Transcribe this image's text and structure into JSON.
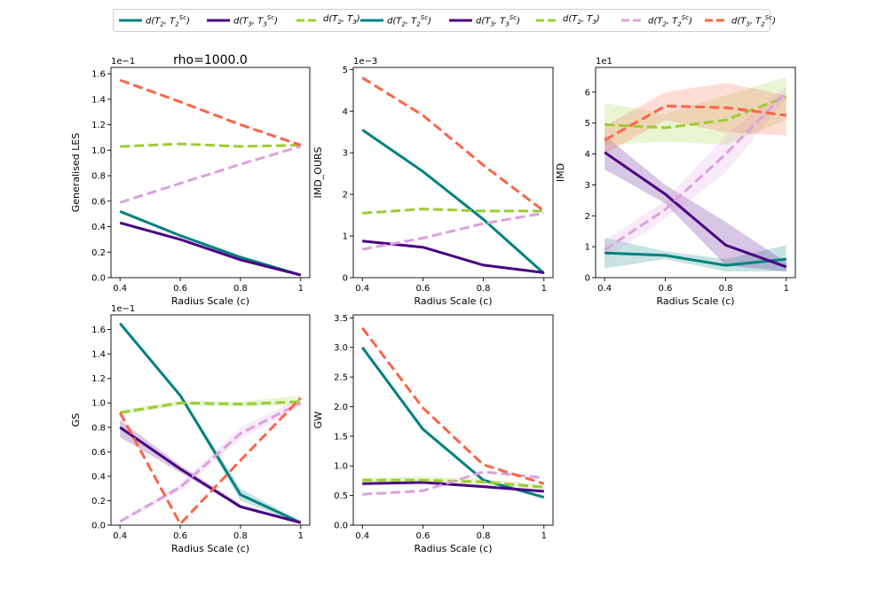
{
  "figure": {
    "suptitle": "rho=1000.0"
  },
  "legend": [
    {
      "label_html": "d(T<sub>2</sub>, T<sub>2</sub><sup>Sc</sup>)",
      "color": "#008080",
      "dash": "solid"
    },
    {
      "label_html": "d(T<sub>3</sub>, T<sub>3</sub><sup>Sc</sup>)",
      "color": "#4b0082",
      "dash": "solid"
    },
    {
      "label_html": "d(T<sub>2</sub>, T<sub>3</sub>)",
      "color": "#9acd32",
      "dash": "dashed"
    },
    {
      "label_html": "d(T<sub>2</sub>, T<sub>2</sub><sup>Sc</sup>)",
      "color": "#008080",
      "dash": "solid"
    },
    {
      "label_html": "d(T<sub>3</sub>, T<sub>3</sub><sup>Sc</sup>)",
      "color": "#4b0082",
      "dash": "solid"
    },
    {
      "label_html": "d(T<sub>2</sub>, T<sub>3</sub>)",
      "color": "#9acd32",
      "dash": "dashed"
    },
    {
      "label_html": "d(T<sub>2</sub>, T<sub>2</sub><sup>Sc</sup>)",
      "color": "#dda0dd",
      "dash": "dashed"
    },
    {
      "label_html": "d(T<sub>3</sub>, T<sub>2</sub><sup>Sc</sup>)",
      "color": "#ff6347",
      "dash": "dashed"
    }
  ],
  "chart_data": [
    {
      "type": "line",
      "title": "",
      "xlabel": "Radius Scale (c)",
      "ylabel": "Generalised LES",
      "scale_label": "1e−1",
      "x": [
        0.4,
        0.6,
        0.8,
        1.0
      ],
      "xticks": [
        "0.4",
        "0.6",
        "0.8",
        "1"
      ],
      "ylim": [
        0,
        1.65
      ],
      "yticks": [
        "0.0",
        "0.2",
        "0.4",
        "0.6",
        "0.8",
        "1.0",
        "1.2",
        "1.4",
        "1.6"
      ],
      "series": [
        {
          "name": "d(T2, T2Sc)",
          "color": "#008080",
          "dash": "solid",
          "values": [
            0.52,
            0.33,
            0.16,
            0.02
          ]
        },
        {
          "name": "d(T3, T3Sc)",
          "color": "#4b0082",
          "dash": "solid",
          "values": [
            0.43,
            0.3,
            0.14,
            0.02
          ]
        },
        {
          "name": "d(T2, T3)",
          "color": "#9acd32",
          "dash": "dashed",
          "values": [
            1.03,
            1.05,
            1.03,
            1.04
          ]
        },
        {
          "name": "d(T2, T2Sc)",
          "color": "#dda0dd",
          "dash": "dashed",
          "values": [
            0.59,
            0.74,
            0.89,
            1.03
          ]
        },
        {
          "name": "d(T3, T2Sc)",
          "color": "#ff6347",
          "dash": "dashed",
          "values": [
            1.55,
            1.38,
            1.2,
            1.04
          ]
        }
      ]
    },
    {
      "type": "line",
      "title": "",
      "xlabel": "Radius Scale (c)",
      "ylabel": "IMD_OURS",
      "scale_label": "1e−3",
      "x": [
        0.4,
        0.6,
        0.8,
        1.0
      ],
      "xticks": [
        "0.4",
        "0.6",
        "0.8",
        "1"
      ],
      "ylim": [
        0,
        5.05
      ],
      "yticks": [
        "0",
        "1",
        "2",
        "3",
        "4",
        "5"
      ],
      "series": [
        {
          "name": "d(T2, T2Sc)",
          "color": "#008080",
          "dash": "solid",
          "values": [
            3.55,
            2.55,
            1.4,
            0.1
          ]
        },
        {
          "name": "d(T3, T3Sc)",
          "color": "#4b0082",
          "dash": "solid",
          "values": [
            0.88,
            0.73,
            0.3,
            0.12
          ]
        },
        {
          "name": "d(T2, T3)",
          "color": "#9acd32",
          "dash": "dashed",
          "values": [
            1.55,
            1.65,
            1.6,
            1.6
          ]
        },
        {
          "name": "d(T2, T2Sc)",
          "color": "#dda0dd",
          "dash": "dashed",
          "values": [
            0.68,
            0.95,
            1.3,
            1.55
          ]
        },
        {
          "name": "d(T3, T2Sc)",
          "color": "#ff6347",
          "dash": "dashed",
          "values": [
            4.8,
            3.9,
            2.7,
            1.6
          ]
        }
      ]
    },
    {
      "type": "line",
      "title": "",
      "xlabel": "Radius Scale (c)",
      "ylabel": "IMD",
      "scale_label": "1e1",
      "x": [
        0.4,
        0.6,
        0.8,
        1.0
      ],
      "xticks": [
        "0.4",
        "0.6",
        "0.8",
        "1"
      ],
      "ylim": [
        0,
        6.8
      ],
      "yticks": [
        "0",
        "1",
        "2",
        "3",
        "4",
        "5",
        "6"
      ],
      "series": [
        {
          "name": "d(T2, T2Sc)",
          "color": "#008080",
          "dash": "solid",
          "values": [
            0.8,
            0.72,
            0.4,
            0.6
          ],
          "band_lo": [
            0.3,
            0.6,
            0.2,
            0.2
          ],
          "band_hi": [
            1.3,
            0.85,
            0.6,
            1.05
          ]
        },
        {
          "name": "d(T3, T3Sc)",
          "color": "#4b0082",
          "dash": "solid",
          "values": [
            4.05,
            2.7,
            1.05,
            0.35
          ],
          "band_lo": [
            3.5,
            2.4,
            0.4,
            0.2
          ],
          "band_hi": [
            4.6,
            3.0,
            1.8,
            0.5
          ]
        },
        {
          "name": "d(T2, T3)",
          "color": "#9acd32",
          "dash": "dashed",
          "values": [
            4.95,
            4.85,
            5.1,
            5.85
          ],
          "band_lo": [
            4.3,
            4.4,
            4.3,
            5.1
          ],
          "band_hi": [
            5.65,
            5.3,
            5.9,
            6.5
          ]
        },
        {
          "name": "d(T2, T2Sc)",
          "color": "#dda0dd",
          "dash": "dashed",
          "values": [
            0.9,
            2.2,
            4.0,
            6.0
          ],
          "band_lo": [
            0.6,
            1.9,
            3.4,
            5.8
          ],
          "band_hi": [
            1.2,
            2.5,
            4.6,
            6.2
          ]
        },
        {
          "name": "d(T3, T2Sc)",
          "color": "#ff6347",
          "dash": "dashed",
          "values": [
            4.45,
            5.55,
            5.5,
            5.25
          ],
          "band_lo": [
            4.0,
            5.1,
            4.7,
            4.6
          ],
          "band_hi": [
            4.9,
            6.0,
            6.3,
            5.9
          ]
        }
      ]
    },
    {
      "type": "line",
      "title": "",
      "xlabel": "Radius Scale (c)",
      "ylabel": "GS",
      "scale_label": "1e−1",
      "x": [
        0.4,
        0.6,
        0.8,
        1.0
      ],
      "xticks": [
        "0.4",
        "0.6",
        "0.8",
        "1"
      ],
      "ylim": [
        0,
        1.72
      ],
      "yticks": [
        "0.0",
        "0.2",
        "0.4",
        "0.6",
        "0.8",
        "1.0",
        "1.2",
        "1.4",
        "1.6"
      ],
      "series": [
        {
          "name": "d(T2, T2Sc)",
          "color": "#008080",
          "dash": "solid",
          "values": [
            1.65,
            1.06,
            0.25,
            0.02
          ],
          "band_lo": [
            1.65,
            1.05,
            0.2,
            0.01
          ],
          "band_hi": [
            1.66,
            1.08,
            0.3,
            0.03
          ]
        },
        {
          "name": "d(T3, T3Sc)",
          "color": "#4b0082",
          "dash": "solid",
          "values": [
            0.8,
            0.46,
            0.15,
            0.02
          ],
          "band_lo": [
            0.72,
            0.43,
            0.14,
            0.01
          ],
          "band_hi": [
            0.86,
            0.49,
            0.17,
            0.03
          ]
        },
        {
          "name": "d(T2, T3)",
          "color": "#9acd32",
          "dash": "dashed",
          "values": [
            0.92,
            1.0,
            0.99,
            1.01
          ],
          "band_lo": [
            0.9,
            0.98,
            0.97,
            0.98
          ],
          "band_hi": [
            0.94,
            1.02,
            1.01,
            1.06
          ]
        },
        {
          "name": "d(T2, T2Sc)",
          "color": "#dda0dd",
          "dash": "dashed",
          "values": [
            0.03,
            0.31,
            0.75,
            1.0
          ],
          "band_lo": [
            0.02,
            0.28,
            0.7,
            0.97
          ],
          "band_hi": [
            0.04,
            0.34,
            0.8,
            1.04
          ]
        },
        {
          "name": "d(T3, T2Sc)",
          "color": "#ff6347",
          "dash": "dashed",
          "values": [
            0.92,
            0.01,
            0.53,
            1.04
          ]
        }
      ]
    },
    {
      "type": "line",
      "title": "",
      "xlabel": "Radius Scale (c)",
      "ylabel": "GW",
      "scale_label": "",
      "x": [
        0.4,
        0.6,
        0.8,
        1.0
      ],
      "xticks": [
        "0.4",
        "0.6",
        "0.8",
        "1"
      ],
      "ylim": [
        0,
        3.55
      ],
      "yticks": [
        "0.0",
        "0.5",
        "1.0",
        "1.5",
        "2.0",
        "2.5",
        "3.0",
        "3.5"
      ],
      "series": [
        {
          "name": "d(T2, T2Sc)",
          "color": "#008080",
          "dash": "solid",
          "values": [
            3.0,
            1.62,
            0.76,
            0.47
          ]
        },
        {
          "name": "d(T3, T3Sc)",
          "color": "#4b0082",
          "dash": "solid",
          "values": [
            0.7,
            0.72,
            0.65,
            0.57
          ]
        },
        {
          "name": "d(T2, T3)",
          "color": "#9acd32",
          "dash": "dashed",
          "values": [
            0.76,
            0.76,
            0.73,
            0.64
          ],
          "band_lo": [
            0.72,
            0.7,
            0.68,
            0.6
          ],
          "band_hi": [
            0.8,
            0.82,
            0.78,
            0.68
          ]
        },
        {
          "name": "d(T2, T2Sc)",
          "color": "#dda0dd",
          "dash": "dashed",
          "values": [
            0.52,
            0.58,
            0.9,
            0.8
          ]
        },
        {
          "name": "d(T3, T2Sc)",
          "color": "#ff6347",
          "dash": "dashed",
          "values": [
            3.33,
            1.98,
            1.02,
            0.7
          ]
        }
      ]
    }
  ]
}
